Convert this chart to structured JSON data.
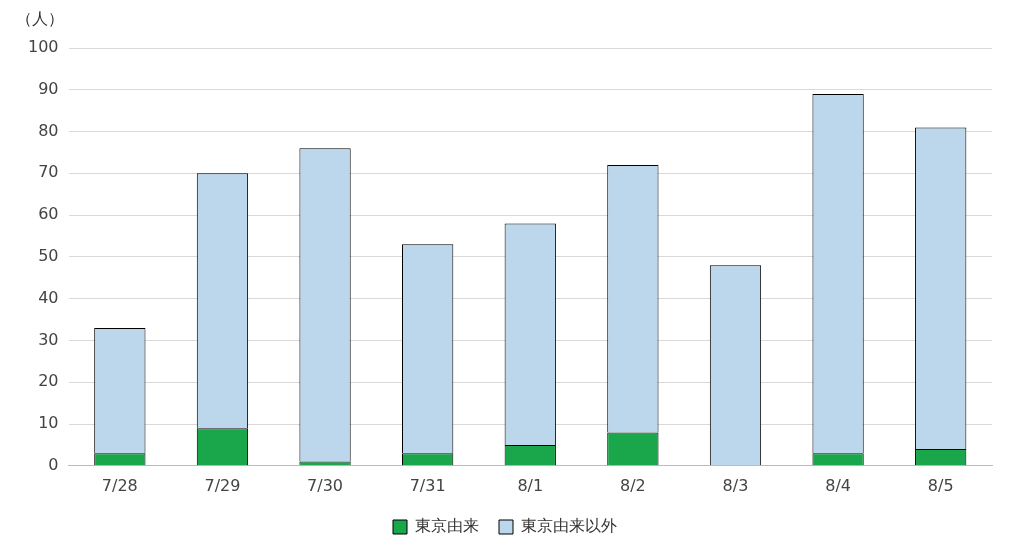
{
  "chart_data": {
    "type": "bar",
    "stacked": true,
    "ylabel": "（人）",
    "categories": [
      "7/28",
      "7/29",
      "7/30",
      "7/31",
      "8/1",
      "8/2",
      "8/3",
      "8/4",
      "8/5"
    ],
    "series": [
      {
        "name": "東京由来",
        "color": "#1aa64a",
        "values": [
          3,
          9,
          1,
          3,
          5,
          8,
          0,
          3,
          4
        ]
      },
      {
        "name": "東京由来以外",
        "color": "#bcd7ec",
        "values": [
          30,
          61,
          75,
          50,
          53,
          64,
          48,
          86,
          77
        ]
      }
    ],
    "ylim": [
      0,
      100
    ],
    "yticks": [
      0,
      10,
      20,
      30,
      40,
      50,
      60,
      70,
      80,
      90,
      100
    ],
    "grid": "y",
    "legend": "bottom"
  }
}
